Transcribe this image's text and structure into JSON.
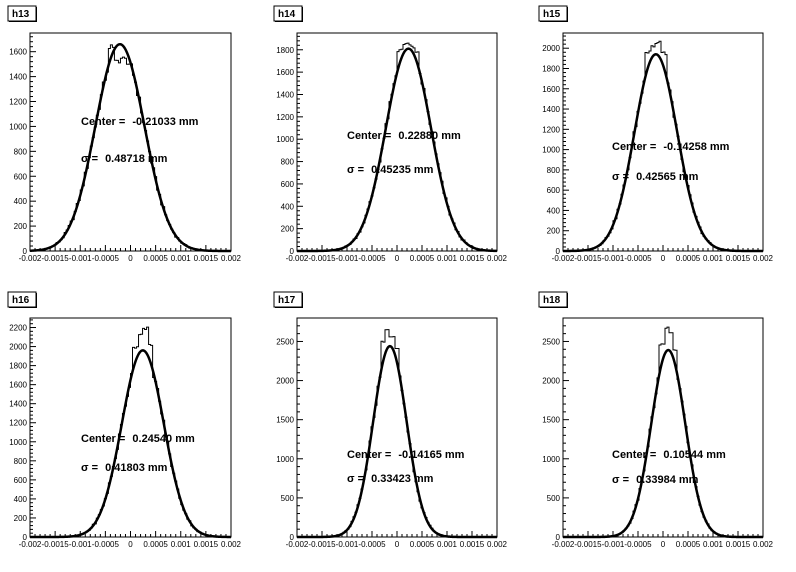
{
  "chart_data": [
    {
      "type": "histogram",
      "title": "h13",
      "xlim": [
        -0.002,
        0.002
      ],
      "ylim": [
        0,
        1750
      ],
      "x_ticks": [
        "-0.002",
        "-0.0015",
        "-0.001",
        "-0.0005",
        "0",
        "0.0005",
        "0.001",
        "0.0015",
        "0.002"
      ],
      "y_ticks": [
        0,
        200,
        400,
        600,
        800,
        1000,
        1200,
        1400,
        1600
      ],
      "fit": {
        "center": -0.00021033,
        "sigma": 0.00048718,
        "peak": 1660
      },
      "histogram_peaks": [
        1640,
        1520,
        1550,
        1490
      ],
      "annotations": {
        "center_label": "Center = ",
        "center_value": "-0.21033 mm",
        "sigma_label": "σ = ",
        "sigma_value": "0.48718 mm"
      }
    },
    {
      "type": "histogram",
      "title": "h14",
      "xlim": [
        -0.002,
        0.002
      ],
      "ylim": [
        0,
        1950
      ],
      "x_ticks": [
        "-0.002",
        "-0.0015",
        "-0.001",
        "-0.0005",
        "0",
        "0.0005",
        "0.001",
        "0.0015",
        "0.002"
      ],
      "y_ticks": [
        0,
        200,
        400,
        600,
        800,
        1000,
        1200,
        1400,
        1600,
        1800
      ],
      "fit": {
        "center": 0.0002288,
        "sigma": 0.00045235,
        "peak": 1810
      },
      "histogram_peaks": [
        1790,
        1860,
        1830,
        1770
      ],
      "annotations": {
        "center_label": "Center = ",
        "center_value": "0.22880 mm",
        "sigma_label": "σ = ",
        "sigma_value": "0.45235 mm"
      }
    },
    {
      "type": "histogram",
      "title": "h15",
      "xlim": [
        -0.002,
        0.002
      ],
      "ylim": [
        0,
        2150
      ],
      "x_ticks": [
        "-0.002",
        "-0.0015",
        "-0.001",
        "-0.0005",
        "0",
        "0.0005",
        "0.001",
        "0.0015",
        "0.002"
      ],
      "y_ticks": [
        0,
        200,
        400,
        600,
        800,
        1000,
        1200,
        1400,
        1600,
        1800,
        2000
      ],
      "fit": {
        "center": -0.00014258,
        "sigma": 0.00042565,
        "peak": 1940
      },
      "histogram_peaks": [
        1960,
        2010,
        2060,
        1950
      ],
      "annotations": {
        "center_label": "Center = ",
        "center_value": "-0.14258 mm",
        "sigma_label": "σ = ",
        "sigma_value": "0.42565 mm"
      }
    },
    {
      "type": "histogram",
      "title": "h16",
      "xlim": [
        -0.002,
        0.002
      ],
      "ylim": [
        0,
        2300
      ],
      "x_ticks": [
        "-0.002",
        "-0.0015",
        "-0.001",
        "-0.0005",
        "0",
        "0.0005",
        "0.001",
        "0.0015",
        "0.002"
      ],
      "y_ticks": [
        0,
        200,
        400,
        600,
        800,
        1000,
        1200,
        1400,
        1600,
        1800,
        2000,
        2200
      ],
      "fit": {
        "center": 0.0002454,
        "sigma": 0.00041803,
        "peak": 1960
      },
      "histogram_peaks": [
        1990,
        2140,
        2190,
        2010
      ],
      "annotations": {
        "center_label": "Center = ",
        "center_value": "0.24540 mm",
        "sigma_label": "σ = ",
        "sigma_value": "0.41803 mm"
      }
    },
    {
      "type": "histogram",
      "title": "h17",
      "xlim": [
        -0.002,
        0.002
      ],
      "ylim": [
        0,
        2800
      ],
      "x_ticks": [
        "-0.002",
        "-0.0015",
        "-0.001",
        "-0.0005",
        "0",
        "0.0005",
        "0.001",
        "0.0015",
        "0.002"
      ],
      "y_ticks": [
        0,
        500,
        1000,
        1500,
        2000,
        2500
      ],
      "fit": {
        "center": -0.00014165,
        "sigma": 0.00033423,
        "peak": 2440
      },
      "histogram_peaks": [
        2500,
        2650,
        2550,
        2420
      ],
      "annotations": {
        "center_label": "Center = ",
        "center_value": "-0.14165 mm",
        "sigma_label": "σ = ",
        "sigma_value": "0.33423 mm"
      }
    },
    {
      "type": "histogram",
      "title": "h18",
      "xlim": [
        -0.002,
        0.002
      ],
      "ylim": [
        0,
        2800
      ],
      "x_ticks": [
        "-0.002",
        "-0.0015",
        "-0.001",
        "-0.0005",
        "0",
        "0.0005",
        "0.001",
        "0.0015",
        "0.002"
      ],
      "y_ticks": [
        0,
        500,
        1000,
        1500,
        2000,
        2500
      ],
      "fit": {
        "center": 0.00010544,
        "sigma": 0.00033984,
        "peak": 2390
      },
      "histogram_peaks": [
        2470,
        2680,
        2600,
        2380
      ],
      "annotations": {
        "center_label": "Center = ",
        "center_value": "0.10544 mm",
        "sigma_label": "σ = ",
        "sigma_value": "0.33984 mm"
      }
    }
  ]
}
